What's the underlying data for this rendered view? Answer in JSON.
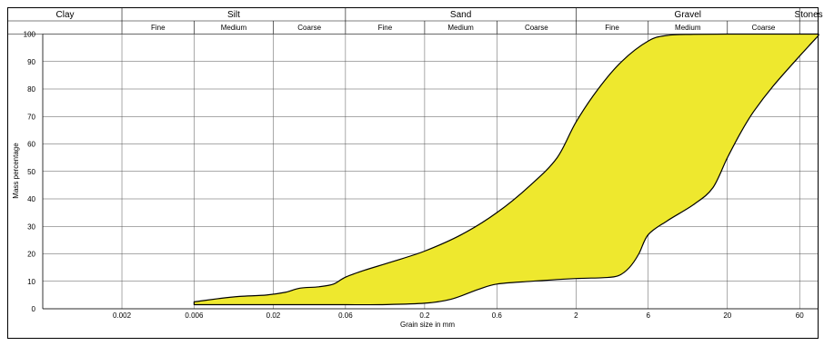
{
  "chart_data": {
    "type": "area",
    "title": "",
    "xlabel": "Grain size in mm",
    "ylabel": "Mass percentage",
    "xscale": "log",
    "xlim": [
      0.0006,
      80
    ],
    "ylim": [
      0,
      100
    ],
    "x_ticks": [
      "0.002",
      "0.006",
      "0.02",
      "0.06",
      "0.2",
      "0.6",
      "2",
      "6",
      "20",
      "60"
    ],
    "y_ticks": [
      "0",
      "10",
      "20",
      "30",
      "40",
      "50",
      "60",
      "70",
      "80",
      "90",
      "100"
    ],
    "grid": true,
    "fill_color": "#EEE82E",
    "soil_classes": [
      {
        "label": "Clay",
        "from": 0.0006,
        "to": 0.002,
        "subs": []
      },
      {
        "label": "Silt",
        "from": 0.002,
        "to": 0.06,
        "subs": [
          {
            "label": "Fine",
            "from": 0.002,
            "to": 0.006
          },
          {
            "label": "Medium",
            "from": 0.006,
            "to": 0.02
          },
          {
            "label": "Coarse",
            "from": 0.02,
            "to": 0.06
          }
        ]
      },
      {
        "label": "Sand",
        "from": 0.06,
        "to": 2,
        "subs": [
          {
            "label": "Fine",
            "from": 0.06,
            "to": 0.2
          },
          {
            "label": "Medium",
            "from": 0.2,
            "to": 0.6
          },
          {
            "label": "Coarse",
            "from": 0.6,
            "to": 2
          }
        ]
      },
      {
        "label": "Gravel",
        "from": 2,
        "to": 60,
        "subs": [
          {
            "label": "Fine",
            "from": 2,
            "to": 6
          },
          {
            "label": "Medium",
            "from": 6,
            "to": 20
          },
          {
            "label": "Coarse",
            "from": 20,
            "to": 60
          }
        ]
      },
      {
        "label": "Stones",
        "from": 60,
        "to": 80,
        "subs": []
      }
    ],
    "series": [
      {
        "role": "upper_bound",
        "x": [
          0.006,
          0.007,
          0.009,
          0.012,
          0.018,
          0.024,
          0.03,
          0.04,
          0.05,
          0.06,
          0.08,
          0.12,
          0.2,
          0.35,
          0.6,
          1,
          1.5,
          2,
          2.8,
          4,
          6,
          8,
          12,
          20,
          40,
          80
        ],
        "y": [
          2.5,
          3,
          3.8,
          4.5,
          5,
          6,
          7.5,
          8,
          9,
          11.5,
          14,
          17,
          21,
          27,
          35,
          45,
          55,
          68,
          80,
          90,
          97.5,
          99.5,
          99.9,
          100,
          100,
          100
        ]
      },
      {
        "role": "lower_bound",
        "x": [
          0.006,
          0.01,
          0.02,
          0.04,
          0.06,
          0.1,
          0.2,
          0.3,
          0.45,
          0.6,
          1,
          2,
          3,
          3.8,
          4.5,
          5.2,
          6,
          8,
          12,
          16,
          20,
          25,
          30,
          40,
          60,
          80
        ],
        "y": [
          1.5,
          1.5,
          1.5,
          1.5,
          1.5,
          1.5,
          2,
          3.5,
          7,
          9,
          10,
          11,
          11.3,
          12,
          15,
          20,
          27,
          32,
          38,
          44,
          55,
          65,
          72,
          81,
          92,
          99.5
        ]
      }
    ]
  }
}
